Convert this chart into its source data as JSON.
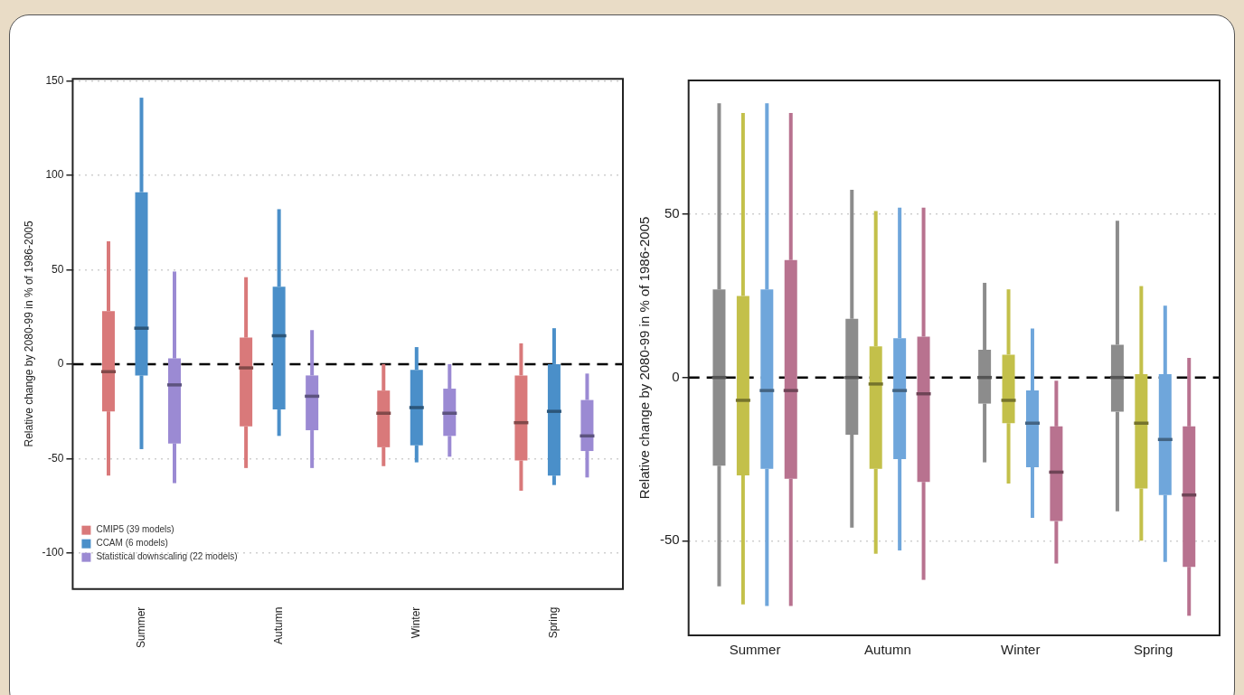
{
  "chart_data": [
    {
      "type": "box",
      "ylabel": "Relative change by 2080-99 in % of 1986-2005",
      "categories": [
        "Summer",
        "Autumn",
        "Winter",
        "Spring"
      ],
      "ylim": [
        -119,
        151
      ],
      "yticks": [
        -100,
        -50,
        0,
        50,
        100,
        150
      ],
      "grid": "y",
      "legend": "bottom left",
      "ref_lines": [
        {
          "axis": "y",
          "value": 0,
          "line_style": "dashed",
          "color": "#000000"
        }
      ],
      "series": [
        {
          "name": "CMIP5 (39 models)",
          "color": "#d9797a",
          "boxes": [
            {
              "low": -59,
              "q1": -25,
              "median": -4,
              "q3": 28,
              "high": 65
            },
            {
              "low": -55,
              "q1": -33,
              "median": -2,
              "q3": 14,
              "high": 46
            },
            {
              "low": -54,
              "q1": -44,
              "median": -26,
              "q3": -14,
              "high": 0
            },
            {
              "low": -67,
              "q1": -51,
              "median": -31,
              "q3": -6,
              "high": 11
            }
          ]
        },
        {
          "name": "CCAM (6 models)",
          "color": "#4a8fc9",
          "boxes": [
            {
              "low": -45,
              "q1": -6,
              "median": 19,
              "q3": 91,
              "high": 141
            },
            {
              "low": -38,
              "q1": -24,
              "median": 15,
              "q3": 41,
              "high": 82
            },
            {
              "low": -52,
              "q1": -43,
              "median": -23,
              "q3": -3,
              "high": 9
            },
            {
              "low": -64,
              "q1": -59,
              "median": -25,
              "q3": 0,
              "high": 19
            }
          ]
        },
        {
          "name": "Statistical downscaling (22 models)",
          "color": "#9b8ad3",
          "boxes": [
            {
              "low": -63,
              "q1": -42,
              "median": -11,
              "q3": 3,
              "high": 49
            },
            {
              "low": -55,
              "q1": -35,
              "median": -17,
              "q3": -6,
              "high": 18
            },
            {
              "low": -49,
              "q1": -38,
              "median": -26,
              "q3": -13,
              "high": 0
            },
            {
              "low": -60,
              "q1": -46,
              "median": -38,
              "q3": -19,
              "high": -5
            }
          ]
        }
      ]
    },
    {
      "type": "box",
      "ylabel": "Relative change by 2080-99 in % of 1986-2005",
      "categories": [
        "Summer",
        "Autumn",
        "Winter",
        "Spring"
      ],
      "ylim": [
        -79,
        91
      ],
      "yticks": [
        -50,
        0,
        50
      ],
      "grid": "y",
      "ref_lines": [
        {
          "axis": "y",
          "value": 0,
          "line_style": "dashed",
          "color": "#000000"
        }
      ],
      "series": [
        {
          "color": "#8c8c8c",
          "boxes": [
            {
              "low": -64,
              "q1": -27,
              "median": 0,
              "q3": 27,
              "high": 84
            },
            {
              "low": -46,
              "q1": -17.5,
              "median": 0,
              "q3": 18,
              "high": 57.5
            },
            {
              "low": -26,
              "q1": -8,
              "median": 0,
              "q3": 8.5,
              "high": 29
            },
            {
              "low": -41,
              "q1": -10.5,
              "median": 0,
              "q3": 10,
              "high": 48
            }
          ]
        },
        {
          "color": "#c3c04a",
          "boxes": [
            {
              "low": -69.5,
              "q1": -30,
              "median": -7,
              "q3": 25,
              "high": 81
            },
            {
              "low": -54,
              "q1": -28,
              "median": -2,
              "q3": 9.5,
              "high": 51
            },
            {
              "low": -32.5,
              "q1": -14,
              "median": -7,
              "q3": 7,
              "high": 27
            },
            {
              "low": -50,
              "q1": -34,
              "median": -14,
              "q3": 1,
              "high": 28
            }
          ]
        },
        {
          "color": "#6fa6db",
          "boxes": [
            {
              "low": -70,
              "q1": -28,
              "median": -4,
              "q3": 27,
              "high": 84
            },
            {
              "low": -53,
              "q1": -25,
              "median": -4,
              "q3": 12,
              "high": 52
            },
            {
              "low": -43,
              "q1": -27.5,
              "median": -14,
              "q3": -4,
              "high": 15
            },
            {
              "low": -56.5,
              "q1": -36,
              "median": -19,
              "q3": 1,
              "high": 22
            }
          ]
        },
        {
          "color": "#b8728f",
          "boxes": [
            {
              "low": -70,
              "q1": -31,
              "median": -4,
              "q3": 36,
              "high": 81
            },
            {
              "low": -62,
              "q1": -32,
              "median": -5,
              "q3": 12.5,
              "high": 52
            },
            {
              "low": -57,
              "q1": -44,
              "median": -29,
              "q3": -15,
              "high": -1
            },
            {
              "low": -73,
              "q1": -58,
              "median": -36,
              "q3": -15,
              "high": 6
            }
          ]
        }
      ]
    }
  ]
}
